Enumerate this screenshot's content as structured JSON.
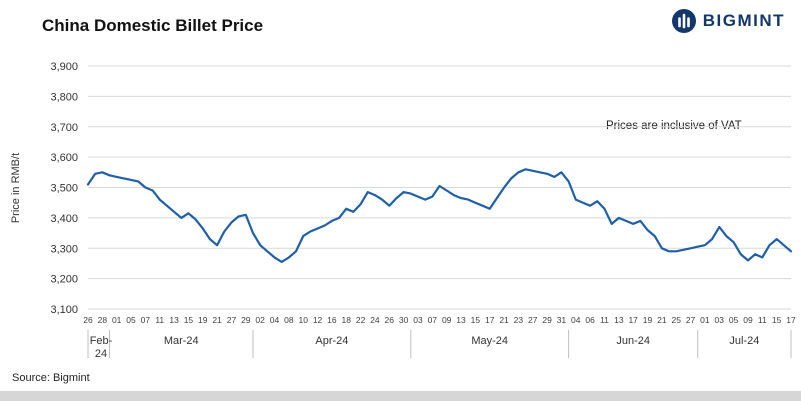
{
  "header": {
    "title": "China Domestic Billet Price"
  },
  "logo": {
    "text": "BIGMINT",
    "color": "#14376b"
  },
  "footer": {
    "source": "Source: Bigmint"
  },
  "chart_data": {
    "type": "line",
    "title": "China Domestic Billet Price",
    "ylabel": "Price in RMB/t",
    "annotation": "Prices are inclusive of VAT",
    "ylim": [
      3100,
      3900
    ],
    "ytick_step": 100,
    "ytick_labels": [
      "3,100",
      "3,200",
      "3,300",
      "3,400",
      "3,500",
      "3,600",
      "3,700",
      "3,800",
      "3,900"
    ],
    "grid": "horizontal",
    "legend": "none",
    "line_color": "#1f5fa8",
    "months": [
      {
        "label": "Feb-24",
        "days": [
          "26",
          "28"
        ]
      },
      {
        "label": "Mar-24",
        "days": [
          "01",
          "05",
          "07",
          "11",
          "13",
          "15",
          "19",
          "21",
          "27",
          "29"
        ]
      },
      {
        "label": "Apr-24",
        "days": [
          "02",
          "04",
          "08",
          "10",
          "12",
          "16",
          "18",
          "22",
          "24",
          "26",
          "30"
        ]
      },
      {
        "label": "May-24",
        "days": [
          "03",
          "07",
          "09",
          "13",
          "15",
          "17",
          "21",
          "23",
          "27",
          "29",
          "31"
        ]
      },
      {
        "label": "Jun-24",
        "days": [
          "04",
          "06",
          "11",
          "13",
          "17",
          "19",
          "21",
          "25",
          "27"
        ]
      },
      {
        "label": "Jul-24",
        "days": [
          "01",
          "03",
          "05",
          "09",
          "11",
          "15",
          "17"
        ]
      }
    ],
    "values": [
      3510,
      3545,
      3550,
      3540,
      3535,
      3530,
      3525,
      3520,
      3500,
      3490,
      3460,
      3440,
      3420,
      3400,
      3415,
      3395,
      3365,
      3330,
      3310,
      3355,
      3385,
      3405,
      3410,
      3350,
      3310,
      3290,
      3270,
      3255,
      3270,
      3290,
      3340,
      3355,
      3365,
      3375,
      3390,
      3400,
      3430,
      3420,
      3445,
      3485,
      3475,
      3460,
      3440,
      3465,
      3485,
      3480,
      3470,
      3460,
      3470,
      3505,
      3490,
      3475,
      3465,
      3460,
      3450,
      3440,
      3430,
      3465,
      3500,
      3530,
      3550,
      3560,
      3555,
      3550,
      3545,
      3535,
      3550,
      3520,
      3460,
      3450,
      3440,
      3455,
      3430,
      3380,
      3400,
      3390,
      3380,
      3390,
      3360,
      3340,
      3300,
      3290,
      3290,
      3295,
      3300,
      3305,
      3310,
      3330,
      3370,
      3340,
      3320,
      3280,
      3260,
      3280,
      3270,
      3310,
      3330,
      3310,
      3290
    ]
  }
}
